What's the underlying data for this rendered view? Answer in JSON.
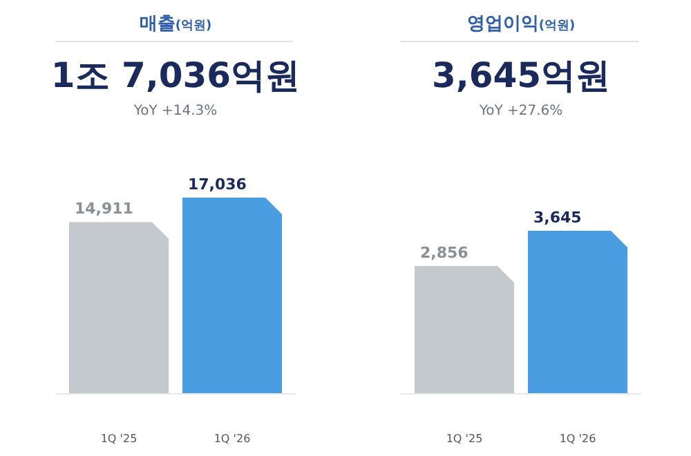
{
  "chart_data": [
    {
      "type": "bar",
      "title": "매출(억원)",
      "subtitle": "1조 7,036억원",
      "annotations": [
        "YoY +14.3%"
      ],
      "categories": [
        "1Q '25",
        "1Q '26"
      ],
      "values": [
        14911,
        17036
      ],
      "value_labels": [
        "14,911",
        "17,036"
      ],
      "colors": [
        "#c3c9cc",
        "#4a9de0"
      ]
    },
    {
      "type": "bar",
      "title": "영업이익(억원)",
      "subtitle": "3,645억원",
      "annotations": [
        "YoY +27.6%"
      ],
      "categories": [
        "1Q '25",
        "1Q '26"
      ],
      "values": [
        2856,
        3645
      ],
      "value_labels": [
        "2,856",
        "3,645"
      ],
      "colors": [
        "#c3c9cc",
        "#4a9de0"
      ]
    }
  ]
}
